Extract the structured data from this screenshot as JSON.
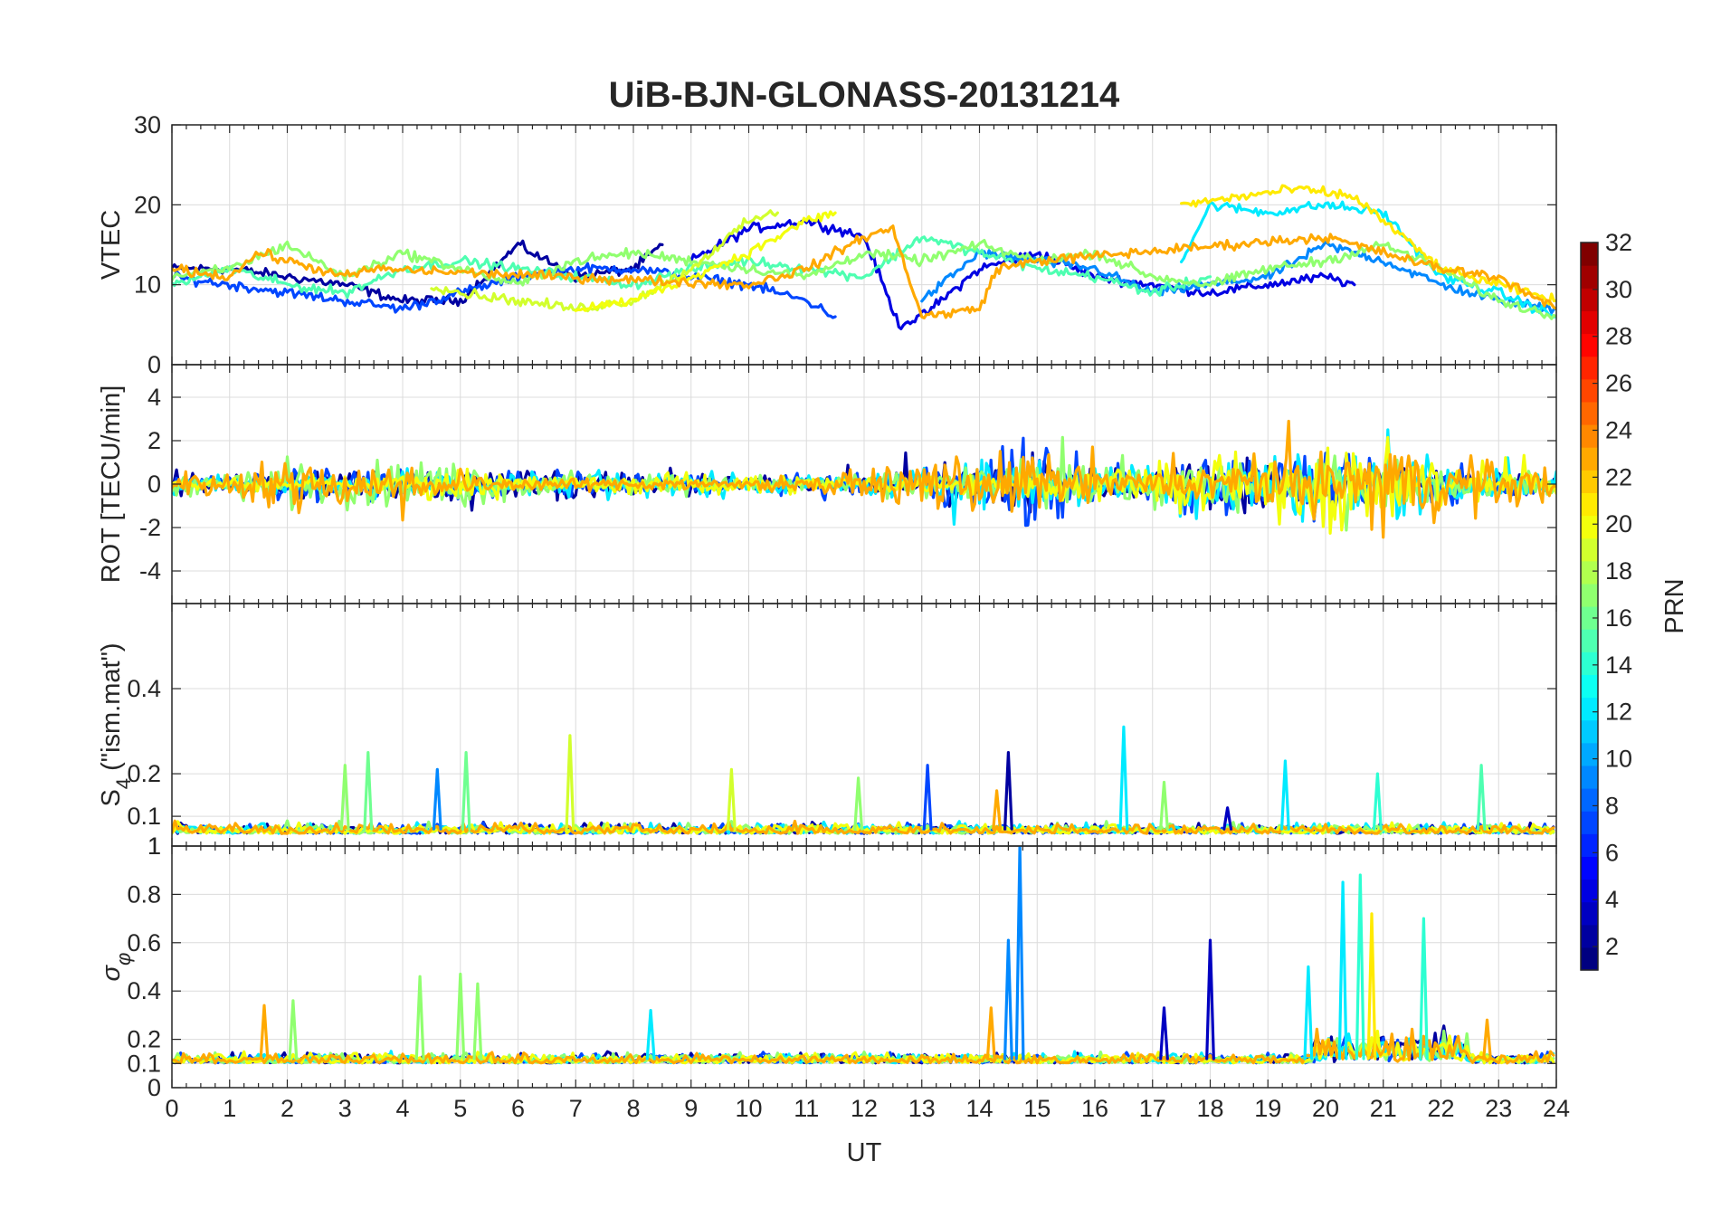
{
  "chart_data": {
    "type": "line",
    "title": "UiB-BJN-GLONASS-20131214",
    "xlabel": "UT",
    "xlim": [
      0,
      24
    ],
    "xticks": [
      "0",
      "1",
      "2",
      "3",
      "4",
      "5",
      "6",
      "7",
      "8",
      "9",
      "10",
      "11",
      "12",
      "13",
      "14",
      "15",
      "16",
      "17",
      "18",
      "19",
      "20",
      "21",
      "22",
      "23",
      "24"
    ],
    "grid": true,
    "colorbar": {
      "label": "PRN",
      "range": [
        1,
        32
      ],
      "ticks": [
        "32",
        "30",
        "28",
        "26",
        "24",
        "22",
        "20",
        "18",
        "16",
        "14",
        "12",
        "10",
        "8",
        "6",
        "4",
        "2"
      ],
      "colormap": "jet",
      "colors": [
        "#00008f",
        "#0000ff",
        "#0080ff",
        "#00ffff",
        "#80ff80",
        "#ffff00",
        "#ff8000",
        "#ff0000",
        "#800000"
      ]
    },
    "panels": [
      {
        "name": "vtec",
        "ylabel": "VTEC",
        "ylim": [
          0,
          30
        ],
        "yticks": [
          "0",
          "10",
          "20",
          "30"
        ],
        "series": [
          {
            "prn": 2,
            "points": [
              [
                0,
                12
              ],
              [
                1,
                12
              ],
              [
                2,
                11
              ],
              [
                3,
                10
              ],
              [
                4,
                8
              ],
              [
                5,
                8
              ],
              [
                6,
                15
              ],
              [
                7,
                11
              ],
              [
                8,
                12
              ],
              [
                8.5,
                15
              ]
            ]
          },
          {
            "prn": 4,
            "points": [
              [
                9,
                13
              ],
              [
                10,
                17
              ],
              [
                11,
                18
              ],
              [
                12,
                16
              ],
              [
                12.6,
                5
              ],
              [
                13,
                6
              ],
              [
                14,
                12
              ],
              [
                15,
                14
              ],
              [
                16,
                11
              ],
              [
                17,
                10
              ],
              [
                18,
                9
              ],
              [
                19,
                10
              ],
              [
                20,
                11
              ],
              [
                20.5,
                10
              ]
            ]
          },
          {
            "prn": 7,
            "points": [
              [
                0,
                11
              ],
              [
                1,
                10
              ],
              [
                2,
                9
              ],
              [
                3,
                8
              ],
              [
                4,
                7
              ],
              [
                5,
                9
              ],
              [
                6,
                11
              ],
              [
                7,
                12
              ],
              [
                8,
                12
              ],
              [
                9,
                11
              ],
              [
                10,
                10
              ],
              [
                11,
                8
              ],
              [
                11.5,
                6
              ]
            ]
          },
          {
            "prn": 9,
            "points": [
              [
                13,
                8
              ],
              [
                14,
                14
              ],
              [
                15,
                13
              ],
              [
                16,
                12
              ],
              [
                17,
                9
              ],
              [
                18,
                10
              ],
              [
                19,
                11
              ],
              [
                20,
                15
              ],
              [
                21,
                13
              ],
              [
                22,
                10
              ],
              [
                23,
                8
              ],
              [
                24,
                7
              ]
            ]
          },
          {
            "prn": 12,
            "points": [
              [
                17.5,
                13
              ],
              [
                18,
                20
              ],
              [
                19,
                19
              ],
              [
                20,
                20
              ],
              [
                21,
                19
              ],
              [
                22,
                11
              ],
              [
                23,
                9
              ],
              [
                24,
                6
              ]
            ]
          },
          {
            "prn": 15,
            "points": [
              [
                0,
                10
              ],
              [
                1,
                12
              ],
              [
                2,
                10
              ],
              [
                3,
                9
              ],
              [
                4,
                12
              ],
              [
                5,
                13
              ],
              [
                6,
                12
              ],
              [
                7,
                11
              ],
              [
                8,
                10
              ],
              [
                9,
                12
              ],
              [
                10,
                13
              ],
              [
                11,
                12
              ],
              [
                12,
                11
              ],
              [
                13,
                16
              ],
              [
                14,
                14
              ],
              [
                15,
                12
              ],
              [
                16,
                11
              ],
              [
                17,
                9
              ],
              [
                18,
                11
              ]
            ]
          },
          {
            "prn": 17,
            "points": [
              [
                0,
                11
              ],
              [
                1,
                12
              ],
              [
                2,
                15
              ],
              [
                3,
                11
              ],
              [
                4,
                14
              ],
              [
                5,
                12
              ],
              [
                6,
                10
              ],
              [
                7,
                13
              ],
              [
                8,
                14
              ],
              [
                9,
                13
              ],
              [
                10,
                12
              ],
              [
                11,
                11
              ],
              [
                12,
                14
              ],
              [
                13,
                13
              ],
              [
                14,
                15
              ],
              [
                15,
                13
              ],
              [
                16,
                14
              ],
              [
                17,
                11
              ],
              [
                18,
                10
              ],
              [
                19,
                12
              ],
              [
                20,
                13
              ],
              [
                21,
                15
              ],
              [
                22,
                12
              ],
              [
                23,
                8
              ],
              [
                24,
                6
              ]
            ]
          },
          {
            "prn": 19,
            "points": [
              [
                4.5,
                10
              ],
              [
                5,
                9
              ],
              [
                6,
                8
              ],
              [
                7,
                7
              ],
              [
                8,
                8
              ],
              [
                9,
                12
              ],
              [
                10,
                18
              ],
              [
                10.5,
                19
              ]
            ]
          },
          {
            "prn": 20,
            "points": [
              [
                7,
                7
              ],
              [
                8,
                8
              ],
              [
                9,
                11
              ],
              [
                10,
                14
              ],
              [
                11,
                18
              ],
              [
                11.5,
                19
              ]
            ]
          },
          {
            "prn": 21,
            "points": [
              [
                17.5,
                20
              ],
              [
                18.5,
                21
              ],
              [
                19.5,
                22
              ],
              [
                20.5,
                21
              ],
              [
                21,
                18
              ],
              [
                22,
                12
              ],
              [
                23,
                10
              ],
              [
                24,
                8
              ]
            ]
          },
          {
            "prn": 23,
            "points": [
              [
                0,
                12
              ],
              [
                1,
                11
              ],
              [
                1.5,
                14
              ],
              [
                2,
                13
              ],
              [
                3,
                11
              ],
              [
                3.5,
                12
              ],
              [
                10,
                10
              ],
              [
                11,
                12
              ],
              [
                12,
                16
              ],
              [
                12.5,
                17
              ],
              [
                13,
                6
              ],
              [
                14,
                7
              ],
              [
                14.3,
                12
              ],
              [
                15,
                13
              ],
              [
                20,
                16
              ],
              [
                21,
                14
              ],
              [
                22,
                12
              ],
              [
                23,
                11
              ],
              [
                24,
                7
              ]
            ]
          }
        ]
      },
      {
        "name": "rot",
        "ylabel": "ROT [TECU/min]",
        "ylim": [
          -5.5,
          5.5
        ],
        "yticks": [
          "4",
          "2",
          "0",
          "-2",
          "-4"
        ],
        "series": [
          {
            "prn": 2,
            "amp": [
              0.8,
              0.8,
              1.0,
              1.2,
              1.0,
              1.0,
              1.3,
              1.0,
              0.8,
              0.7,
              0.5,
              0.5,
              0.6,
              0.8,
              1.5,
              2.5,
              1.2,
              1.0,
              2.0,
              1.5,
              1.8,
              1.2,
              1.0,
              0.8,
              0.6
            ]
          },
          {
            "prn": 7,
            "amp": [
              0.7,
              0.7,
              1.0,
              0.9,
              0.9,
              1.1,
              1.0,
              0.8,
              0.7,
              0.6,
              0.5,
              0.6,
              0.6,
              0.9,
              1.8,
              3.5,
              1.5,
              1.2,
              2.5,
              1.8,
              2.0,
              1.5,
              1.2,
              0.9,
              0.7
            ]
          },
          {
            "prn": 12,
            "amp": [
              0.6,
              0.6,
              0.8,
              0.8,
              0.8,
              0.9,
              0.9,
              0.8,
              0.8,
              1.0,
              0.8,
              0.6,
              0.7,
              1.0,
              1.5,
              2.0,
              1.4,
              1.5,
              2.2,
              2.0,
              2.5,
              2.2,
              1.6,
              1.0,
              0.8
            ]
          },
          {
            "prn": 17,
            "amp": [
              0.7,
              0.8,
              1.6,
              1.4,
              1.5,
              1.6,
              1.0,
              0.7,
              0.6,
              0.5,
              0.5,
              0.5,
              0.6,
              0.9,
              1.2,
              1.6,
              1.5,
              1.4,
              1.8,
              1.5,
              1.6,
              1.4,
              1.2,
              0.9,
              0.8
            ]
          },
          {
            "prn": 20,
            "amp": [
              0.3,
              0.3,
              0.4,
              0.4,
              0.6,
              1.2,
              0.6,
              0.5,
              0.6,
              0.7,
              0.7,
              0.6,
              0.5,
              0.6,
              0.8,
              1.0,
              1.0,
              1.3,
              2.0,
              2.2,
              3.5,
              2.8,
              1.8,
              1.0,
              0.8
            ]
          },
          {
            "prn": 23,
            "amp": [
              0.8,
              0.9,
              1.8,
              1.6,
              1.2,
              0.6,
              0.5,
              0.4,
              0.4,
              0.4,
              0.4,
              0.6,
              0.8,
              1.5,
              2.0,
              2.0,
              1.0,
              0.9,
              1.2,
              1.5,
              2.0,
              3.0,
              2.0,
              1.6,
              1.2
            ]
          }
        ]
      },
      {
        "name": "s4",
        "ylabel": "S",
        "ylabel_sub": "4",
        "ylabel_rest": " (\"ism.mat\")",
        "ylim": [
          0.03,
          0.6
        ],
        "yticks": [
          "0.1",
          "0.2",
          "0.4"
        ],
        "extra_tick": "1",
        "baseline": 0.07,
        "spikes": [
          [
            3,
            0.22,
            17
          ],
          [
            3.4,
            0.25,
            16
          ],
          [
            4.6,
            0.21,
            9
          ],
          [
            5.1,
            0.25,
            16
          ],
          [
            6.9,
            0.29,
            19
          ],
          [
            9.7,
            0.21,
            19
          ],
          [
            11.9,
            0.19,
            17
          ],
          [
            13.1,
            0.22,
            7
          ],
          [
            14.5,
            0.25,
            2
          ],
          [
            14.3,
            0.16,
            23
          ],
          [
            16.5,
            0.31,
            12
          ],
          [
            17.2,
            0.18,
            17
          ],
          [
            18.3,
            0.12,
            3
          ],
          [
            19.3,
            0.23,
            12
          ],
          [
            20.9,
            0.2,
            14
          ],
          [
            22.7,
            0.22,
            15
          ]
        ]
      },
      {
        "name": "sigma",
        "ylabel": "σ",
        "ylabel_sub": "φ",
        "ylim": [
          0,
          1
        ],
        "yticks": [
          "0",
          "0.1",
          "0.2",
          "0.4",
          "0.6",
          "0.8",
          "1"
        ],
        "baseline": 0.12,
        "spikes": [
          [
            1.6,
            0.34,
            23
          ],
          [
            2.1,
            0.36,
            17
          ],
          [
            4.3,
            0.46,
            17
          ],
          [
            5.0,
            0.47,
            17
          ],
          [
            5.3,
            0.43,
            17
          ],
          [
            8.3,
            0.32,
            12
          ],
          [
            14.2,
            0.33,
            23
          ],
          [
            14.5,
            0.61,
            9
          ],
          [
            14.7,
            1.0,
            9
          ],
          [
            17.2,
            0.33,
            3
          ],
          [
            18.0,
            0.61,
            3
          ],
          [
            19.7,
            0.5,
            12
          ],
          [
            20.3,
            0.85,
            12
          ],
          [
            20.6,
            0.88,
            14
          ],
          [
            20.8,
            0.72,
            21
          ],
          [
            21.7,
            0.7,
            14
          ],
          [
            22.8,
            0.28,
            23
          ]
        ]
      }
    ]
  }
}
